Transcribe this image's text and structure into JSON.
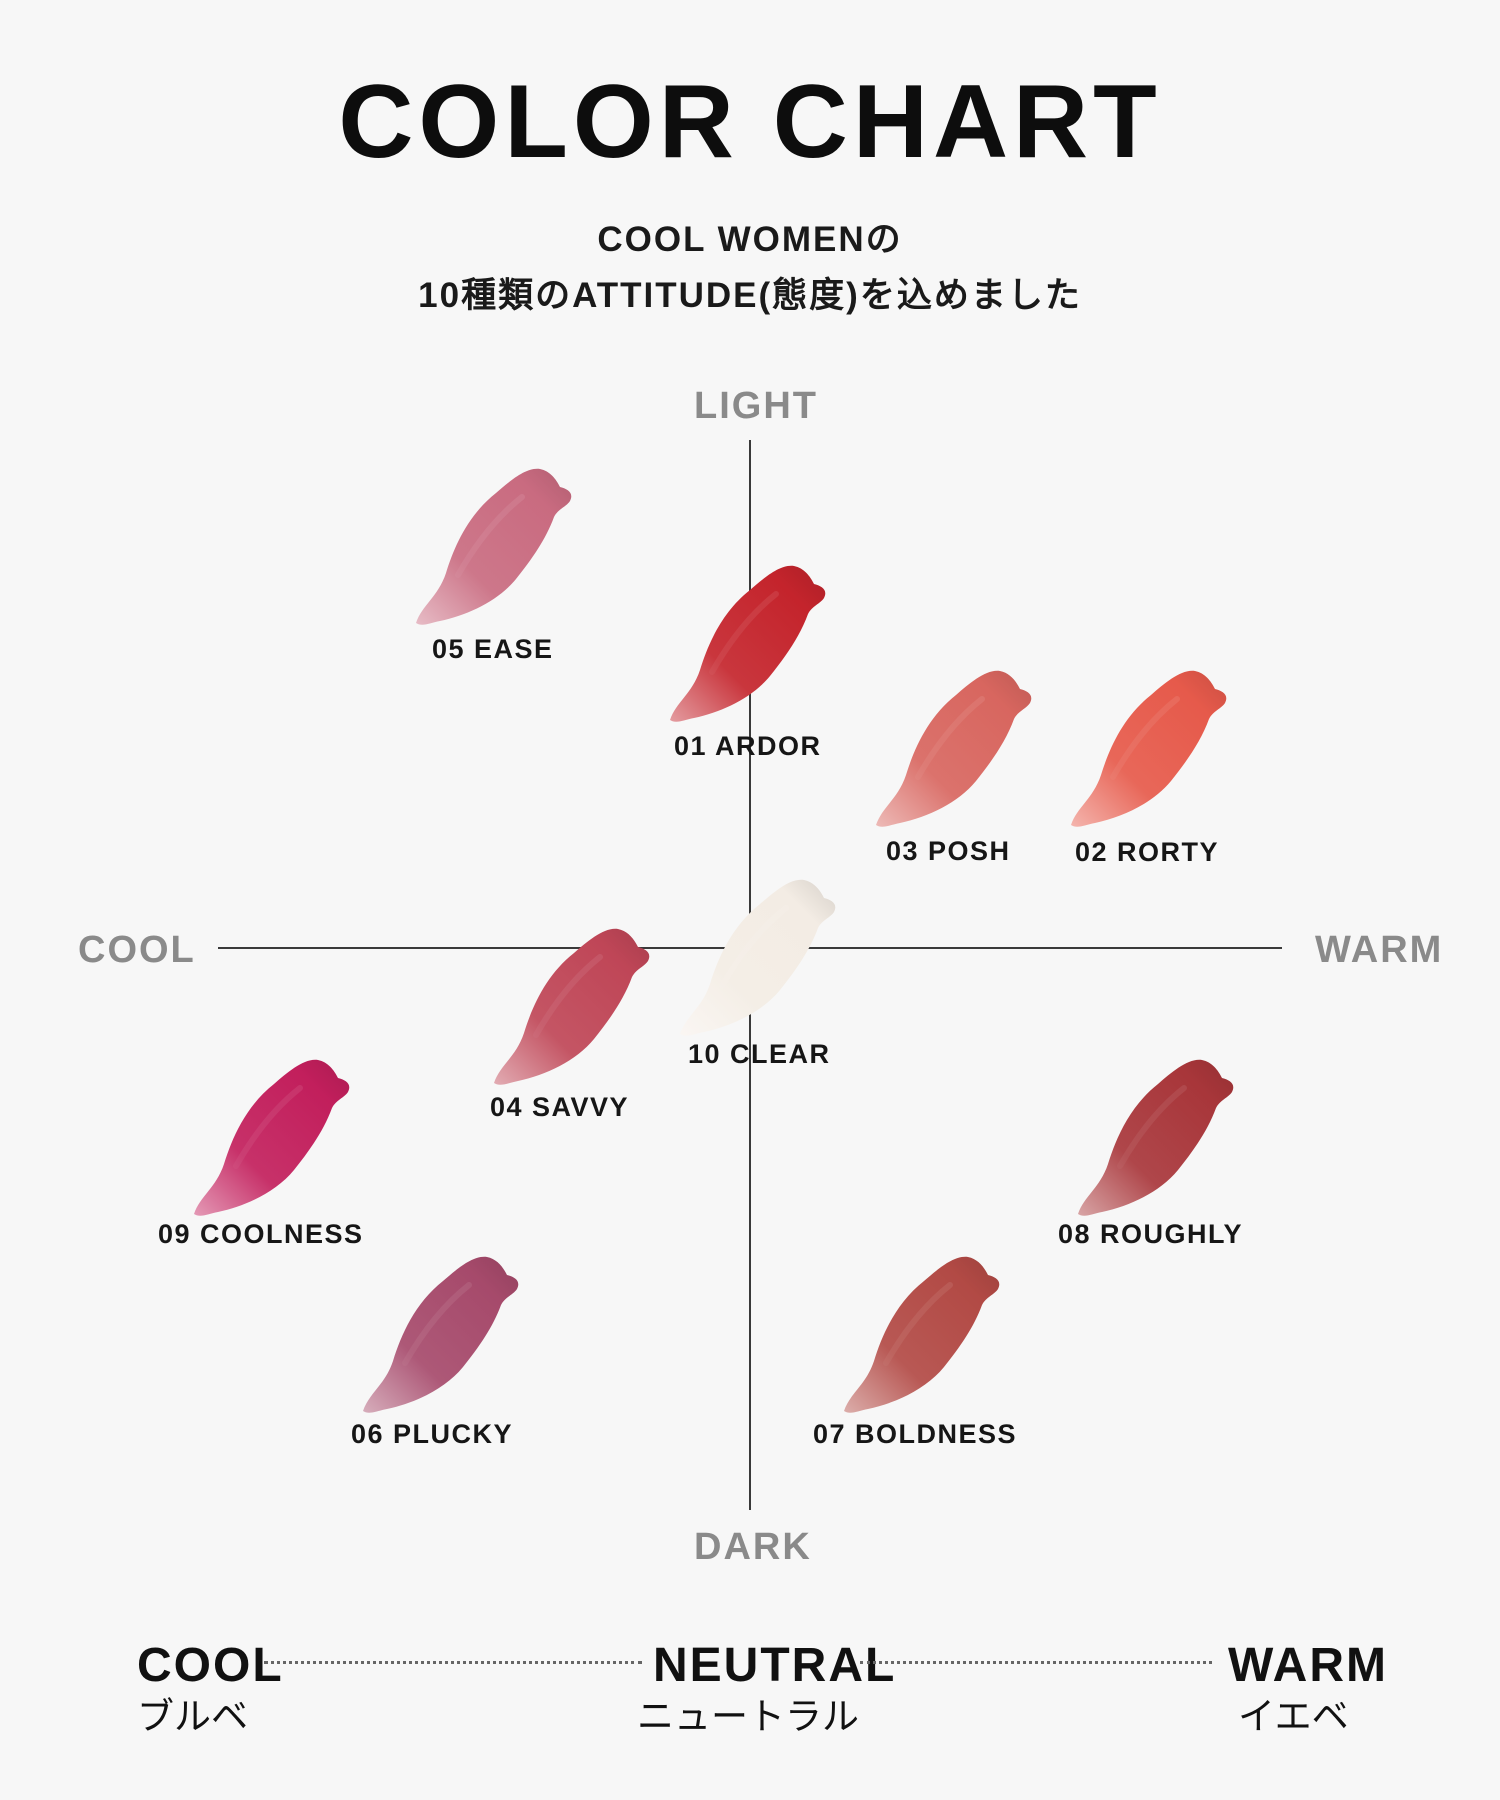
{
  "header": {
    "title": "COLOR CHART",
    "subtitle_line1": "COOL WOMENの",
    "subtitle_line2": "10種類のATTITUDE(態度)を込めました"
  },
  "axes": {
    "top": "LIGHT",
    "bottom": "DARK",
    "left": "COOL",
    "right": "WARM"
  },
  "shades": [
    {
      "id": "05",
      "label": "05 EASE",
      "color": "#c96b80"
    },
    {
      "id": "01",
      "label": "01 ARDOR",
      "color": "#c4242c"
    },
    {
      "id": "03",
      "label": "03 POSH",
      "color": "#d8665f"
    },
    {
      "id": "02",
      "label": "02 RORTY",
      "color": "#e65a4b"
    },
    {
      "id": "10",
      "label": "10 CLEAR",
      "color": "#f3ece4"
    },
    {
      "id": "04",
      "label": "04 SAVVY",
      "color": "#bf4657"
    },
    {
      "id": "09",
      "label": "09 COOLNESS",
      "color": "#c21f5c"
    },
    {
      "id": "08",
      "label": "08 ROUGHLY",
      "color": "#a8363a"
    },
    {
      "id": "06",
      "label": "06 PLUCKY",
      "color": "#a64a6b"
    },
    {
      "id": "07",
      "label": "07 BOLDNESS",
      "color": "#b24a45"
    }
  ],
  "legend": {
    "cool": {
      "word": "COOL",
      "jp": "ブルベ"
    },
    "neutral": {
      "word": "NEUTRAL",
      "jp": "ニュートラル"
    },
    "warm": {
      "word": "WARM",
      "jp": "イエベ"
    }
  }
}
